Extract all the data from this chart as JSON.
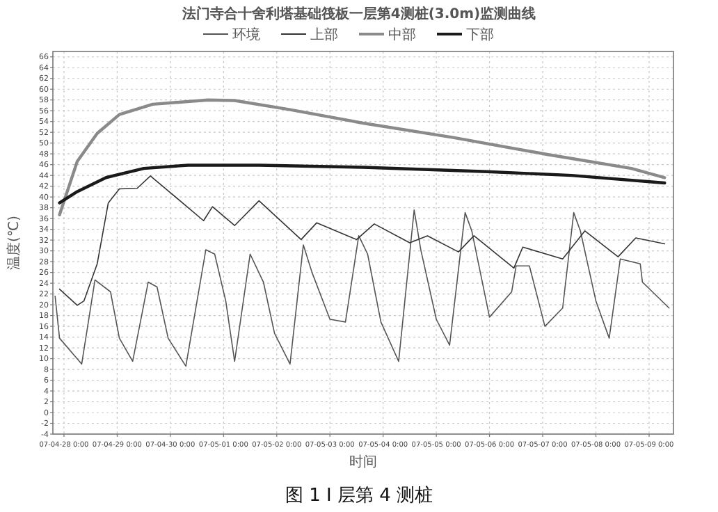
{
  "chart_data": {
    "type": "line",
    "title": "法门寺合十舍利塔基础筏板一层第4测桩(3.0m)监测曲线",
    "xlabel": "时间",
    "ylabel": "温度(℃)",
    "annotations": [
      "图 1  I 层第 4 测桩"
    ],
    "xlim": [
      "--04-27T19:00",
      "--05-09T11:00"
    ],
    "xticks": [
      {
        "value": "--04-28T00:00",
        "label": "07-04-28 0:00"
      },
      {
        "value": "--04-29T00:00",
        "label": "07-04-29 0:00"
      },
      {
        "value": "--04-30T00:00",
        "label": "07-04-30 0:00"
      },
      {
        "value": "--05-01T00:00",
        "label": "07-05-01 0:00"
      },
      {
        "value": "--05-02T00:00",
        "label": "07-05-02 0:00"
      },
      {
        "value": "--05-03T00:00",
        "label": "07-05-03 0:00"
      },
      {
        "value": "--05-04T00:00",
        "label": "07-05-04 0:00"
      },
      {
        "value": "--05-05T00:00",
        "label": "07-05-05 0:00"
      },
      {
        "value": "--05-06T00:00",
        "label": "07-05-06 0:00"
      },
      {
        "value": "--05-07T00:00",
        "label": "07-05-07 0:00"
      },
      {
        "value": "--05-08T00:00",
        "label": "07-05-08 0:00"
      },
      {
        "value": "--05-09T00:00",
        "label": "07-05-09 0:00"
      }
    ],
    "ylim": [
      -4,
      67
    ],
    "yticks": [
      -4,
      -2,
      0,
      2,
      4,
      6,
      8,
      10,
      12,
      14,
      16,
      18,
      20,
      22,
      24,
      26,
      28,
      30,
      32,
      34,
      36,
      38,
      40,
      42,
      44,
      46,
      48,
      50,
      52,
      54,
      56,
      58,
      60,
      62,
      64,
      66
    ],
    "grid": true,
    "legend": "top",
    "line_style": "solid",
    "series": [
      {
        "name": "环境",
        "color": "#555555",
        "x": [
          "--04-27T20:00",
          "--04-27T22:00",
          "--04-28T08:00",
          "--04-28T14:00",
          "--04-28T21:00",
          "--04-29T01:00",
          "--04-29T07:00",
          "--04-29T14:00",
          "--04-29T18:00",
          "--04-29T23:00",
          "--04-30T07:00",
          "--04-30T16:00",
          "--04-30T20:00",
          "--05-01T01:00",
          "--05-01T05:00",
          "--05-01T12:00",
          "--05-01T18:00",
          "--05-01T23:00",
          "--05-02T06:00",
          "--05-02T12:00",
          "--05-02T16:00",
          "--05-03T00:00",
          "--05-03T07:00",
          "--05-03T13:00",
          "--05-03T17:00",
          "--05-03T23:00",
          "--05-04T07:00",
          "--05-04T14:00",
          "--05-04T17:00",
          "--05-05T00:00",
          "--05-05T06:00",
          "--05-05T13:00",
          "--05-05T16:00",
          "--05-06T00:00",
          "--05-06T10:00",
          "--05-06T12:00",
          "--05-06T18:00",
          "--05-07T01:00",
          "--05-07T09:00",
          "--05-07T14:00",
          "--05-07T17:00",
          "--05-08T00:00",
          "--05-08T06:00",
          "--05-08T11:00",
          "--05-08T20:00",
          "--05-08T21:00",
          "--05-09T09:00"
        ],
        "values": [
          21.6,
          13.8,
          9.0,
          24.6,
          22.4,
          13.8,
          9.5,
          24.2,
          23.3,
          13.8,
          8.6,
          30.2,
          29.4,
          20.7,
          9.5,
          29.4,
          24.2,
          14.7,
          9.0,
          31.1,
          25.9,
          17.3,
          16.8,
          32.8,
          29.4,
          16.8,
          9.5,
          37.6,
          30.2,
          17.3,
          12.5,
          37.1,
          33.7,
          17.7,
          22.4,
          27.2,
          27.2,
          16.0,
          19.4,
          37.1,
          33.7,
          20.7,
          13.8,
          28.5,
          27.6,
          24.2,
          19.4
        ]
      },
      {
        "name": "上部",
        "color": "#333333",
        "x": [
          "--04-27T22:00",
          "--04-28T06:00",
          "--04-28T09:00",
          "--04-28T15:00",
          "--04-28T20:00",
          "--04-29T01:00",
          "--04-29T09:00",
          "--04-29T15:00",
          "--04-29T22:00",
          "--04-30T15:00",
          "--04-30T19:00",
          "--05-01T05:00",
          "--05-01T16:00",
          "--05-02T11:00",
          "--05-02T18:00",
          "--05-03T12:00",
          "--05-03T20:00",
          "--05-04T12:00",
          "--05-04T20:00",
          "--05-05T10:00",
          "--05-05T17:00",
          "--05-06T11:00",
          "--05-06T15:00",
          "--05-07T09:00",
          "--05-07T19:00",
          "--05-08T10:00",
          "--05-08T18:00",
          "--05-09T07:00"
        ],
        "values": [
          22.9,
          19.9,
          20.7,
          27.6,
          38.9,
          41.5,
          41.6,
          43.9,
          41.5,
          35.6,
          38.2,
          34.7,
          39.3,
          32.1,
          35.2,
          32.1,
          35.0,
          31.5,
          32.8,
          29.8,
          32.8,
          26.8,
          30.7,
          28.5,
          33.7,
          28.9,
          32.4,
          31.3
        ]
      },
      {
        "name": "中部",
        "color": "#8a8a8a",
        "x": [
          "--04-27T22:00",
          "--04-28T06:00",
          "--04-28T15:00",
          "--04-29T01:00",
          "--04-29T16:00",
          "--04-30T17:00",
          "--05-01T05:00",
          "--05-02T06:00",
          "--05-03T15:00",
          "--05-05T08:00",
          "--05-07T02:00",
          "--05-08T16:00",
          "--05-09T07:00"
        ],
        "values": [
          36.7,
          46.6,
          51.8,
          55.3,
          57.2,
          58.0,
          57.9,
          56.2,
          53.7,
          51.0,
          47.9,
          45.3,
          43.6
        ]
      },
      {
        "name": "下部",
        "color": "#1a1a1a",
        "x": [
          "--04-27T22:00",
          "--04-28T06:00",
          "--04-28T19:00",
          "--04-29T12:00",
          "--04-30T08:00",
          "--05-01T16:00",
          "--05-03T15:00",
          "--05-05T23:00",
          "--05-07T13:00",
          "--05-09T07:00"
        ],
        "values": [
          38.9,
          41.0,
          43.6,
          45.3,
          45.9,
          45.9,
          45.5,
          44.7,
          44.0,
          42.6
        ]
      }
    ]
  }
}
